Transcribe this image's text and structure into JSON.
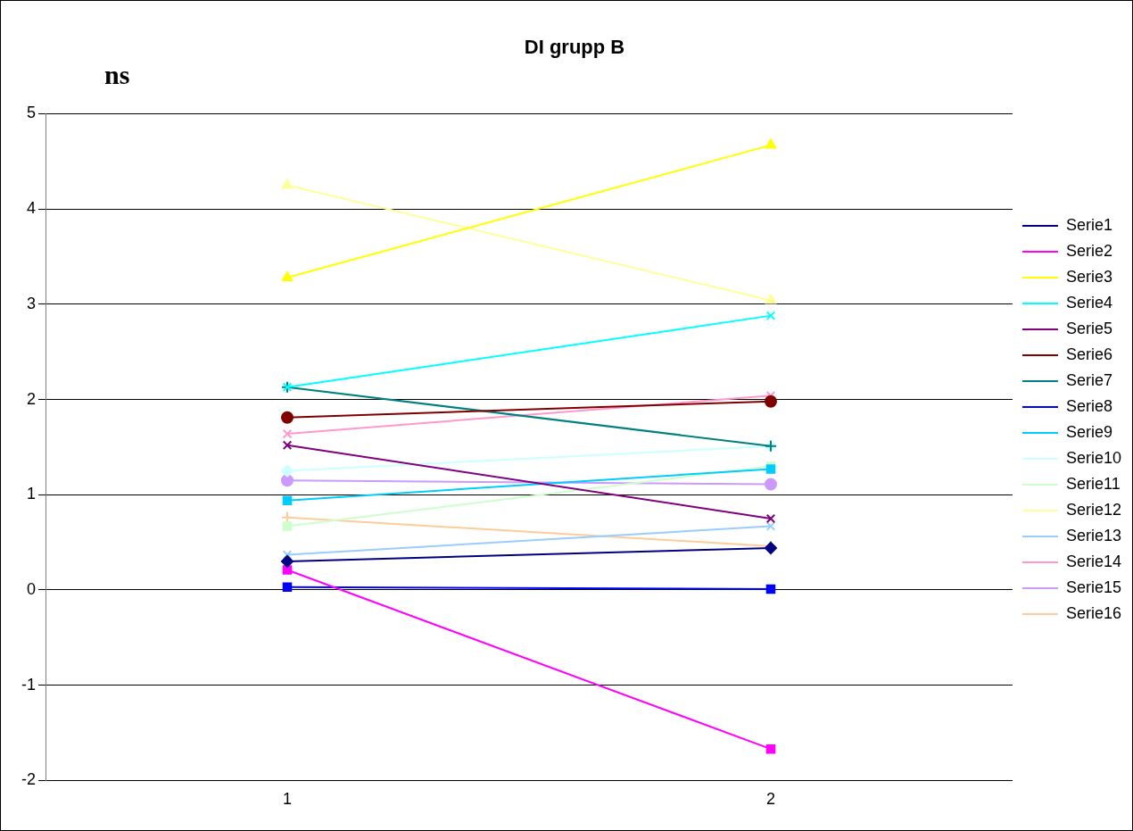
{
  "chart_data": {
    "type": "line",
    "title": "DI grupp B",
    "annotations": [
      "ns"
    ],
    "categories": [
      "1",
      "2"
    ],
    "ylim": [
      -2,
      5
    ],
    "yticks": [
      -2,
      -1,
      0,
      1,
      2,
      3,
      4,
      5
    ],
    "grid": "y",
    "legend": "right",
    "line_style": "solid",
    "series": [
      {
        "name": "Serie1",
        "color": "#000080",
        "marker": "diamond",
        "values": [
          0.3,
          0.44
        ]
      },
      {
        "name": "Serie2",
        "color": "#ff00ff",
        "marker": "square",
        "values": [
          0.21,
          -1.67
        ]
      },
      {
        "name": "Serie3",
        "color": "#ffff00",
        "marker": "triangle",
        "values": [
          3.28,
          4.67
        ]
      },
      {
        "name": "Serie4",
        "color": "#00ffff",
        "marker": "cross",
        "values": [
          2.13,
          2.88
        ]
      },
      {
        "name": "Serie5",
        "color": "#800080",
        "marker": "cross",
        "values": [
          1.52,
          0.75
        ]
      },
      {
        "name": "Serie6",
        "color": "#800000",
        "marker": "circle",
        "values": [
          1.81,
          1.98
        ]
      },
      {
        "name": "Serie7",
        "color": "#008080",
        "marker": "plus",
        "values": [
          2.13,
          1.51
        ]
      },
      {
        "name": "Serie8",
        "color": "#0000ff",
        "marker": "square",
        "values": [
          0.03,
          0.01
        ]
      },
      {
        "name": "Serie9",
        "color": "#00ccff",
        "marker": "square",
        "values": [
          0.94,
          1.27
        ]
      },
      {
        "name": "Serie10",
        "color": "#ccffff",
        "marker": "diamond",
        "values": [
          1.25,
          1.51
        ]
      },
      {
        "name": "Serie11",
        "color": "#ccffcc",
        "marker": "square",
        "values": [
          0.67,
          1.3
        ]
      },
      {
        "name": "Serie12",
        "color": "#ffff99",
        "marker": "triangle",
        "values": [
          4.25,
          3.04
        ]
      },
      {
        "name": "Serie13",
        "color": "#99ccff",
        "marker": "cross",
        "values": [
          0.37,
          0.67
        ]
      },
      {
        "name": "Serie14",
        "color": "#ff99cc",
        "marker": "cross",
        "values": [
          1.64,
          2.04
        ]
      },
      {
        "name": "Serie15",
        "color": "#cc99ff",
        "marker": "circle",
        "values": [
          1.15,
          1.11
        ]
      },
      {
        "name": "Serie16",
        "color": "#ffcc99",
        "marker": "plus",
        "values": [
          0.76,
          0.46
        ]
      }
    ]
  }
}
